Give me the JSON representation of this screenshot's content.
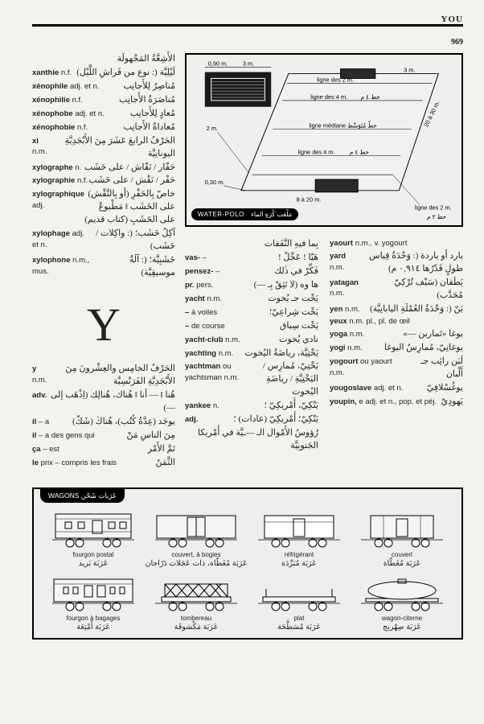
{
  "header": {
    "guide_word": "YOU",
    "page_number": "969"
  },
  "x_entries": [
    {
      "fr": "",
      "ar": "الأَشِعَّةُ المَجْهولَة"
    },
    {
      "fr": "xanthie n.f.",
      "ar": "لَيْلِيَّة (: نوع من فَراشِ اللَّيْل)"
    },
    {
      "fr": "xénophile adj. et n.",
      "ar": "مُناصِرٌ لِلأَجانِب"
    },
    {
      "fr": "xénophilie n.f.",
      "ar": "مُناصَرَةُ الأَجانِب"
    },
    {
      "fr": "xénophobe adj. et n.",
      "ar": "مُعادٍ لِلأَجانِب"
    },
    {
      "fr": "xénophobie n.f.",
      "ar": "مُعاداةُ الأَجانِب"
    },
    {
      "fr": "xi n.m.",
      "ar": "الحَرْفُ الرابعَ عَشَرَ مِنَ الأَبْجَدِيَّةِ اليونانِيَّة"
    },
    {
      "fr": "xylographe n.",
      "ar": "حَفّار / نَقّاش / على خَشَب"
    },
    {
      "fr": "xylographie n.f.",
      "ar": "حَفْر / نَقْش / على خَشَب"
    },
    {
      "fr": "xylographique adj.",
      "ar": "خاصّ بِالحَفْرِ (أو بِالنَّقْش) على الخَشَب ‖ مَطْبوعٌ على الخَشَبِ (كتاب قديم)"
    },
    {
      "fr": "xylophage adj. et n.",
      "ar": "آكِلُ خَشَب؛ (: واكِلات / خَشَب)"
    },
    {
      "fr": "xylophone n.m., mus.",
      "ar": "خَشَبِيَّة؛ (: آلَةٌ موسيقِيَّة)"
    }
  ],
  "big_letter": "Y",
  "y_left": [
    {
      "fr": "y n.m.",
      "ar": "الحَرْفُ الخامِس والعِشْرونَ مِنَ الأَبْجَدِيَّةِ الفَرَنْسِيَّة"
    },
    {
      "fr": "adv.",
      "ar": "هُنا ‖ — أنا ‖ هُناك، هُنالِك (اِذْهَب إلى —)"
    },
    {
      "fr": "il – a",
      "ar": "يوجَد (عِدَّةُ كُتُب)، هُناكَ (شَكّ)"
    },
    {
      "fr": "il – a des gens qui",
      "ar": "مِنَ الناسِ مَنْ"
    },
    {
      "fr": "ça – est",
      "ar": "تَمَّ الأَمْر"
    },
    {
      "fr": "le prix – compris les frais",
      "ar": "الثَّمَنُ"
    }
  ],
  "y_mid": [
    {
      "fr": "",
      "ar": "بِما فيهِ النَّفَقات"
    },
    {
      "fr": "vas- –",
      "ar": "هَيّا ! عَجِّلْ !"
    },
    {
      "fr": "pensez- –",
      "ar": "فَكِّرْ في ذٰلك"
    },
    {
      "fr": "pr. pers.",
      "ar": "ها وه (لا تَثِقْ بِـ —)"
    },
    {
      "fr": "yacht n.m.",
      "ar": "يَخْت جـ يُخوت"
    },
    {
      "fr": "– à voiles",
      "ar": "يَخْت شِراعِيّ؛"
    },
    {
      "fr": "– de course",
      "ar": "يَخْت سِباق"
    },
    {
      "fr": "yacht-club n.m.",
      "ar": "نادي يُخوت"
    },
    {
      "fr": "yachting n.m.",
      "ar": "يَخْتِيَّة، رياضَةُ اليُخوت"
    },
    {
      "fr": "yachtman ou yachtsman n.m.",
      "ar": "يَخْتِيّ، مُمارِس / اليَخْتِيَّةِ / رياضَةِ اليُخوت"
    },
    {
      "fr": "yankee n.",
      "ar": "يَنْكِيّ، أَمْريكِيّ ؛"
    },
    {
      "fr": "adj.",
      "ar": "يَنْكِيّ؛ أَمْريكِيّ (عادات) ؛"
    },
    {
      "fr": "",
      "ar": "رُؤوسُ الأَمْوال الـ —ـيَّة في أَمْريكا الجَنوبِيَّة"
    }
  ],
  "y_right": [
    {
      "fr": "yaourt n.m., v. yogourt",
      "ar": ""
    },
    {
      "fr": "yard n.m.",
      "ar": "يارد أو ياردة (: وَحْدَةُ قِياس طولٍ قَدْرُها ٠,٩١٤ م)"
    },
    {
      "fr": "yatagan n.m.",
      "ar": "يَطَقان (سَيْف تُرْكِيّ مُحَدَّب)"
    },
    {
      "fr": "yen n.m.",
      "ar": "يَنّ (: وَحْدَةُ العُمْلَةِ اليابانِيَّة)"
    },
    {
      "fr": "yeux n.m. pl., pl. de œil",
      "ar": ""
    },
    {
      "fr": "yoga n.m.",
      "ar": "يوغا «تَمارين —»"
    },
    {
      "fr": "yogi n.m.",
      "ar": "يوغانِيّ، مُمارِسُ اليوغا"
    },
    {
      "fr": "yogourt ou yaourt n.m.",
      "ar": "لَبَن رائِب جـ أَلْبان"
    },
    {
      "fr": "yougoslave adj. et n.",
      "ar": "يوغُسْلافِيّ"
    },
    {
      "fr": "youpin, e adj. et n., pop. et péj.",
      "ar": "يَهودِيّ"
    }
  ],
  "water_polo": {
    "label_fr": "WATER-POLO",
    "label_ar": "مَلْعَب كُرَةِ الماء",
    "dims": {
      "w090": "0,90 m.",
      "w3": "3 m.",
      "w2": "2 m.",
      "w030": "0,30 m.",
      "l2fr": "ligne des 2 m.",
      "l2ar": "خط ٢ م",
      "l4fr": "ligne des 4 m.",
      "l4ar": "خط ٤ م",
      "lmedfr": "ligne médiane",
      "lmedar": "خطّ مُتَوَسِّط",
      "w8_20": "8 à 20 m.",
      "w20_30": "20 à 30 m."
    }
  },
  "wagons": {
    "label_fr": "WAGONS",
    "label_ar": "عَرَبات شَحْن",
    "row1": [
      {
        "fr": "fourgon postal",
        "ar": "عَرَبَة بَريد"
      },
      {
        "fr": "couvert, à bogies",
        "ar": "عَرَبَة مُغَطّاة، ذات عَجَلات دَرّاجان"
      },
      {
        "fr": "réfrigérant",
        "ar": "عَرَبَة مُبَرِّدَة"
      },
      {
        "fr": "couvert",
        "ar": "عَرَبَة مُغَطّاة"
      }
    ],
    "row2": [
      {
        "fr": "fourgon à bagages",
        "ar": "عَرَبَة أَمْتِعَة"
      },
      {
        "fr": "tombereau",
        "ar": "عَرَبَة مَكْشوفَة"
      },
      {
        "fr": "plat",
        "ar": "عَرَبَة مُسَطَّحَة"
      },
      {
        "fr": "wagon-citerne",
        "ar": "عَرَبَة صِهْريج"
      }
    ]
  }
}
